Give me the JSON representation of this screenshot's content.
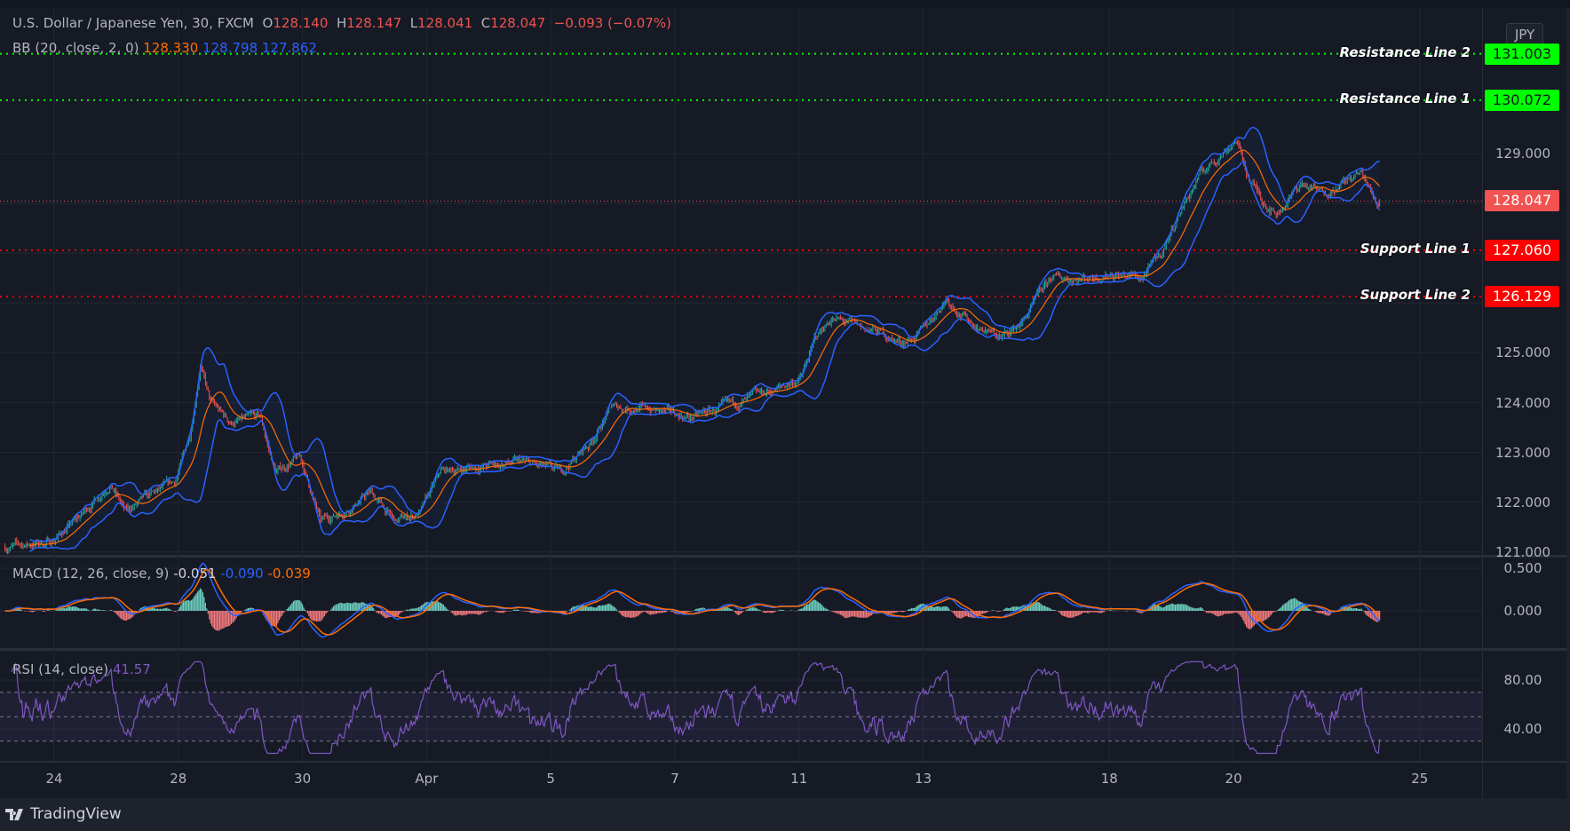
{
  "header": {
    "symbol": "U.S. Dollar / Japanese Yen, 30, FXCM",
    "open_label": "O",
    "open": "128.140",
    "high_label": "H",
    "high": "128.147",
    "low_label": "L",
    "low": "128.041",
    "close_label": "C",
    "close": "128.047",
    "change": "−0.093 (−0.07%)"
  },
  "bb": {
    "label": "BB (20, close, 2, 0)",
    "basis": "128.330",
    "upper": "128.798",
    "lower": "127.862"
  },
  "macd": {
    "label": "MACD (12, 26, close, 9)",
    "hist": "-0.051",
    "macd": "-0.090",
    "signal": "-0.039"
  },
  "rsi": {
    "label": "RSI (14, close)",
    "value": "41.57"
  },
  "currency_button": "JPY",
  "price_lines": [
    {
      "label": "Resistance Line 2",
      "value": "131.003",
      "color": "#00ff00"
    },
    {
      "label": "Resistance Line 1",
      "value": "130.072",
      "color": "#00ff00"
    },
    {
      "label": "Support Line 1",
      "value": "127.060",
      "color": "#ff0000"
    },
    {
      "label": "Support Line 2",
      "value": "126.129",
      "color": "#ff0000"
    }
  ],
  "last_price": {
    "value": "128.047",
    "color": "#f05350"
  },
  "footer": {
    "brand": "TradingView"
  },
  "colors": {
    "up": "#26a69a",
    "down": "#ef5350",
    "bb_band": "#2962ff",
    "bb_basis": "#ff6d00",
    "rsi": "#7e57c2",
    "background": "#161a25"
  },
  "chart_data": [
    {
      "type": "candlestick",
      "title": "U.S. Dollar / Japanese Yen, 30, FXCM",
      "interval": "30 min",
      "y_ticks": [
        "121.000",
        "122.000",
        "123.000",
        "124.000",
        "125.000",
        "129.000"
      ],
      "x_ticks": [
        "24",
        "28",
        "30",
        "Apr",
        "5",
        "7",
        "11",
        "13",
        "18",
        "20",
        "25"
      ],
      "ylim": [
        120.9,
        131.5
      ],
      "close_path": [
        [
          "Mar 23 05:00",
          121.1
        ],
        [
          "Mar 23 22:30",
          121.2
        ],
        [
          "Mar 24 10:00",
          121.7
        ],
        [
          "Mar 24 21:40",
          122.4
        ],
        [
          "Mar 25 03:30",
          121.8
        ],
        [
          "Mar 25 09:20",
          122.0
        ],
        [
          "Mar 25 22:50",
          122.4
        ],
        [
          "Mar 28 04:40",
          123.4
        ],
        [
          "Mar 28 08:30",
          124.8
        ],
        [
          "Mar 28 12:20",
          124.0
        ],
        [
          "Mar 28 20:10",
          123.6
        ],
        [
          "Mar 29 07:40",
          123.7
        ],
        [
          "Mar 29 13:30",
          122.6
        ],
        [
          "Mar 29 23:10",
          122.9
        ],
        [
          "Mar 30 07:00",
          121.6
        ],
        [
          "Mar 30 18:30",
          121.9
        ],
        [
          "Mar 31 02:20",
          122.2
        ],
        [
          "Mar 31 12:00",
          121.6
        ],
        [
          "Mar 31 21:40",
          121.8
        ],
        [
          "Apr 1 05:30",
          122.6
        ],
        [
          "Apr 1 17:00",
          122.7
        ],
        [
          "Apr 4 12:30",
          122.8
        ],
        [
          "Apr 5 03:50",
          122.6
        ],
        [
          "Apr 5 15:30",
          123.2
        ],
        [
          "Apr 5 23:20",
          123.9
        ],
        [
          "Apr 6 10:50",
          123.9
        ],
        [
          "Apr 7 06:10",
          123.7
        ],
        [
          "Apr 8 01:30",
          124.0
        ],
        [
          "Apr 8 17:00",
          124.3
        ],
        [
          "Apr 11 00:50",
          124.5
        ],
        [
          "Apr 11 06:30",
          125.3
        ],
        [
          "Apr 11 12:30",
          125.7
        ],
        [
          "Apr 12 00:00",
          125.5
        ],
        [
          "Apr 12 07:40",
          125.4
        ],
        [
          "Apr 12 15:30",
          125.2
        ],
        [
          "Apr 12 23:20",
          125.4
        ],
        [
          "Apr 13 09:00",
          126.1
        ],
        [
          "Apr 13 18:30",
          125.6
        ],
        [
          "Apr 14 06:10",
          125.3
        ],
        [
          "Apr 14 14:00",
          125.6
        ],
        [
          "Apr 15 01:30",
          126.5
        ],
        [
          "Apr 15 13:10",
          126.5
        ],
        [
          "Apr 18 00:50",
          126.6
        ],
        [
          "Apr 18 12:30",
          126.5
        ],
        [
          "Apr 18 20:10",
          127.0
        ],
        [
          "Apr 19 03:50",
          127.9
        ],
        [
          "Apr 19 11:30",
          128.6
        ],
        [
          "Apr 19 19:20",
          129.0
        ],
        [
          "Apr 20 01:10",
          129.3
        ],
        [
          "Apr 20 05:00",
          128.6
        ],
        [
          "Apr 20 10:50",
          128.1
        ],
        [
          "Apr 20 16:30",
          127.8
        ],
        [
          "Apr 21 02:20",
          128.4
        ],
        [
          "Apr 21 10:00",
          128.2
        ],
        [
          "Apr 21 17:50",
          128.4
        ],
        [
          "Apr 22 01:30",
          128.6
        ],
        [
          "Apr 22 07:20",
          128.0
        ],
        [
          "Apr 22 08:50",
          128.047
        ]
      ]
    },
    {
      "type": "line",
      "title": "MACD (12, 26, close, 9)",
      "y_ticks": [
        "0.500",
        "0.000"
      ]
    },
    {
      "type": "line",
      "title": "RSI (14, close)",
      "y_ticks": [
        "80.00",
        "40.00"
      ],
      "bands": [
        30,
        50,
        70
      ]
    }
  ]
}
